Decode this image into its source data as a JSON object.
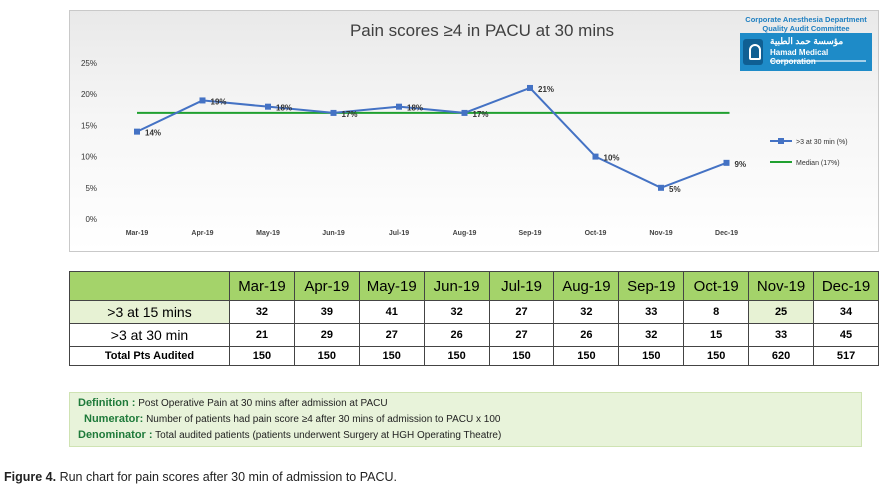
{
  "logo": {
    "line1": "Corporate Anesthesia Department",
    "line2": "Quality Audit Committee",
    "arabic": "مؤسسة حمد الطبية",
    "english": "Hamad Medical Corporation"
  },
  "chart_data": {
    "type": "line",
    "title": "Pain scores ≥4 in PACU at 30 mins",
    "categories": [
      "Mar-19",
      "Apr-19",
      "May-19",
      "Jun-19",
      "Jul-19",
      "Aug-19",
      "Sep-19",
      "Oct-19",
      "Nov-19",
      "Dec-19"
    ],
    "series": [
      {
        "name": ">3 at 30 min (%)",
        "values": [
          14,
          19,
          18,
          17,
          18,
          17,
          21,
          10,
          5,
          9
        ],
        "labels": [
          "14%",
          "19%",
          "18%",
          "17%",
          "18%",
          "17%",
          "21%",
          "10%",
          "5%",
          "9%"
        ],
        "color": "#4472c4"
      },
      {
        "name": "Median (17%)",
        "values": [
          17,
          17,
          17,
          17,
          17,
          17,
          17,
          17,
          17,
          17
        ],
        "color": "#20a030"
      }
    ],
    "yticks": [
      "0%",
      "5%",
      "10%",
      "15%",
      "20%",
      "25%"
    ],
    "ylim": [
      0,
      25
    ],
    "legend": "right",
    "grid": false
  },
  "table": {
    "headers": [
      "Mar-19",
      "Apr-19",
      "May-19",
      "Jun-19",
      "Jul-19",
      "Aug-19",
      "Sep-19",
      "Oct-19",
      "Nov-19",
      "Dec-19"
    ],
    "rows": [
      {
        "label": ">3 at 15 mins",
        "values": [
          "32",
          "39",
          "41",
          "32",
          "27",
          "32",
          "33",
          "8",
          "25",
          "34"
        ]
      },
      {
        "label": ">3 at 30 min",
        "values": [
          "21",
          "29",
          "27",
          "26",
          "27",
          "26",
          "32",
          "15",
          "33",
          "45"
        ]
      },
      {
        "label": "Total Pts Audited",
        "values": [
          "150",
          "150",
          "150",
          "150",
          "150",
          "150",
          "150",
          "150",
          "620",
          "517"
        ]
      }
    ]
  },
  "definitions": {
    "definition_key": "Definition :",
    "definition_text": "Post Operative Pain at 30 mins after admission at PACU",
    "numerator_key": "Numerator:",
    "numerator_text": "Number of patients had pain score ≥4  after 30 mins of admission to PACU x 100",
    "denominator_key": "Denominator :",
    "denominator_text": "Total audited patients (patients underwent Surgery at HGH Operating Theatre)"
  },
  "caption": {
    "label": "Figure 4.",
    "text": "Run chart for pain scores after 30 min of admission to PACU."
  }
}
